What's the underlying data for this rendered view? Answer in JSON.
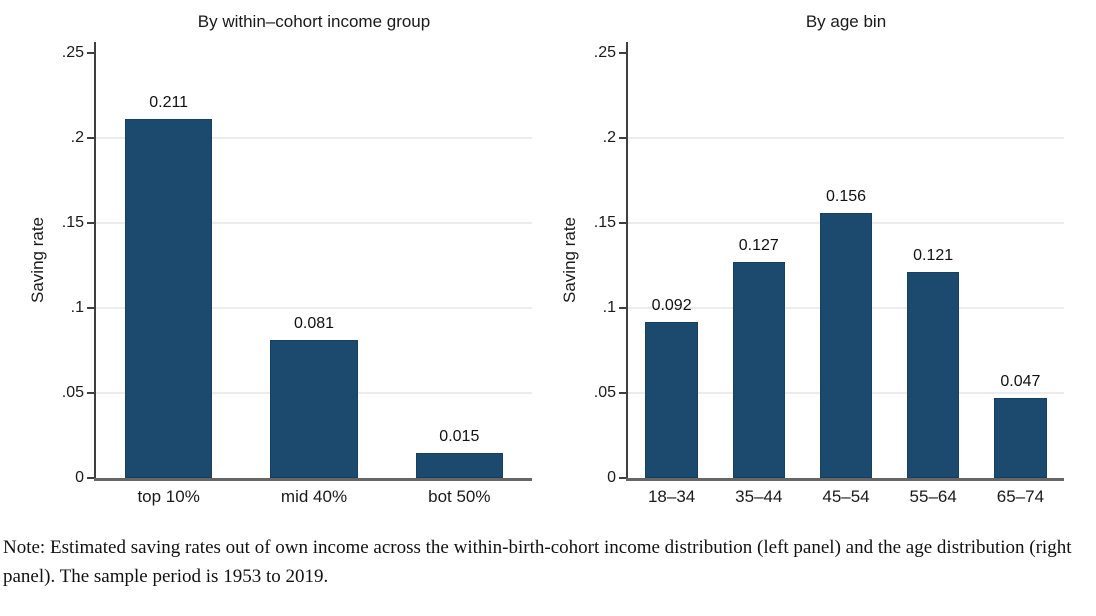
{
  "chart_data": [
    {
      "type": "bar",
      "title": "By within–cohort income group",
      "ylabel": "Saving rate",
      "xlabel": "",
      "categories": [
        "top 10%",
        "mid 40%",
        "bot 50%"
      ],
      "values": [
        0.211,
        0.081,
        0.015
      ],
      "bar_labels": [
        "0.211",
        "0.081",
        "0.015"
      ],
      "yticks": {
        "values": [
          0,
          0.05,
          0.1,
          0.15,
          0.2,
          0.25
        ],
        "labels": [
          "0",
          ".05",
          ".1",
          ".15",
          ".2",
          ".25"
        ]
      },
      "gridlines": [
        0.05,
        0.1,
        0.15,
        0.2
      ],
      "ylim": [
        0,
        0.2565
      ],
      "grid": "horizontal",
      "legend": "none",
      "bar_color": "#1c4a6e"
    },
    {
      "type": "bar",
      "title": "By age bin",
      "ylabel": "Saving rate",
      "xlabel": "",
      "categories": [
        "18–34",
        "35–44",
        "45–54",
        "55–64",
        "65–74"
      ],
      "values": [
        0.092,
        0.127,
        0.156,
        0.121,
        0.047
      ],
      "bar_labels": [
        "0.092",
        "0.127",
        "0.156",
        "0.121",
        "0.047"
      ],
      "yticks": {
        "values": [
          0,
          0.05,
          0.1,
          0.15,
          0.2,
          0.25
        ],
        "labels": [
          "0",
          ".05",
          ".1",
          ".15",
          ".2",
          ".25"
        ]
      },
      "gridlines": [
        0.05,
        0.1,
        0.15,
        0.2
      ],
      "ylim": [
        0,
        0.2565
      ],
      "grid": "horizontal",
      "legend": "none",
      "bar_color": "#1c4a6e"
    }
  ],
  "note": {
    "text": "Note: Estimated saving rates out of own income across the within-birth-cohort income distribution (left panel) and the age distribution (right panel). The sample period is 1953 to 2019."
  }
}
